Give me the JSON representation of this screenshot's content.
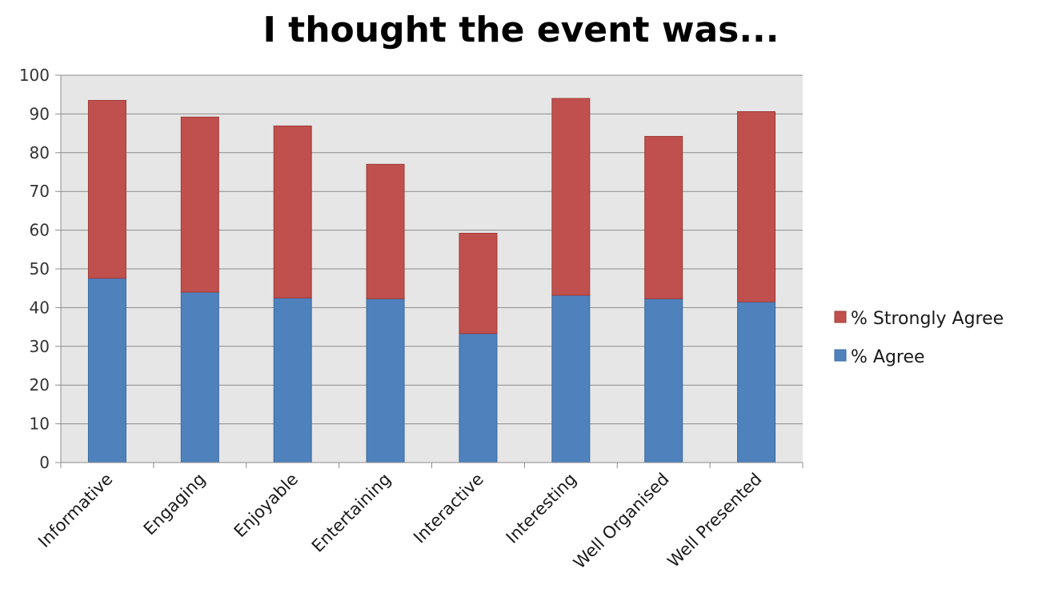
{
  "chart_data": {
    "type": "bar",
    "stacked": true,
    "title": "I thought the event was...",
    "xlabel": "",
    "ylabel": "",
    "ylim": [
      0,
      100
    ],
    "yticks": [
      0,
      10,
      20,
      30,
      40,
      50,
      60,
      70,
      80,
      90,
      100
    ],
    "grid": true,
    "legend_position": "right",
    "categories": [
      "Informative",
      "Engaging",
      "Enjoyable",
      "Entertaining",
      "Interactive",
      "Interesting",
      "Well Organised",
      "Well Presented"
    ],
    "series": [
      {
        "name": "% Agree",
        "color": "#4f81bd",
        "values": [
          47.6,
          44,
          42.5,
          42.3,
          33.3,
          43.2,
          42.3,
          41.5
        ]
      },
      {
        "name": "% Strongly Agree",
        "color": "#c0504d",
        "values": [
          45.9,
          45.2,
          44.4,
          34.7,
          25.9,
          50.8,
          41.9,
          49.1
        ]
      }
    ],
    "plot_background": "#e6e6e6"
  }
}
